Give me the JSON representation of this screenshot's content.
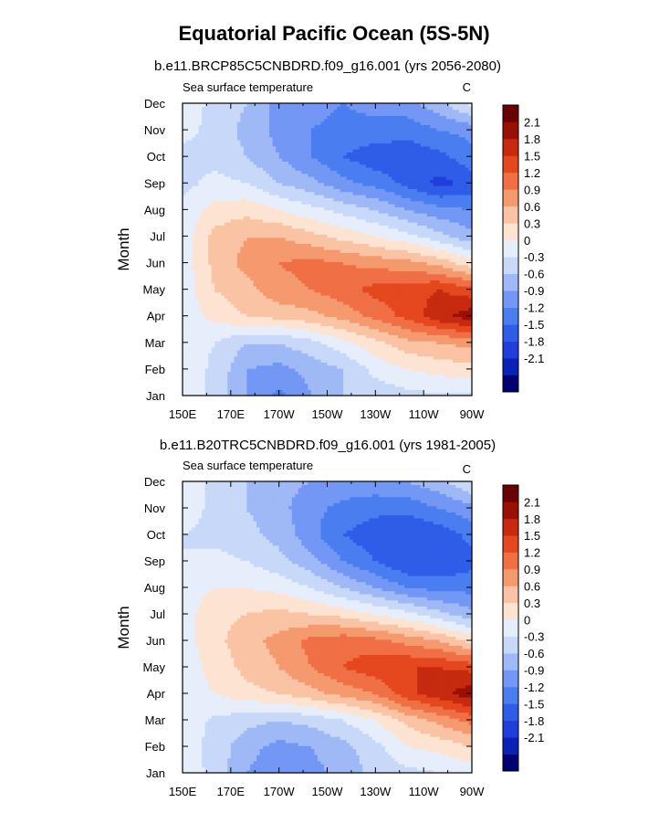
{
  "figure": {
    "title": "Equatorial Pacific Ocean (5S-5N)"
  },
  "chart_data": [
    {
      "type": "heatmap",
      "title": "b.e11.BRCP85C5CNBDRD.f09_g16.001 (yrs 2056-2080)",
      "left_label": "Sea surface temperature",
      "right_label": "C",
      "xlabel": "",
      "ylabel": "Month",
      "x_tick_labels": [
        "150E",
        "170E",
        "170W",
        "150W",
        "130W",
        "110W",
        "90W"
      ],
      "y_tick_labels": [
        "Jan",
        "Feb",
        "Mar",
        "Apr",
        "May",
        "Jun",
        "Jul",
        "Aug",
        "Sep",
        "Oct",
        "Nov",
        "Dec"
      ],
      "colorbar": {
        "labels": [
          "2.1",
          "1.8",
          "1.5",
          "1.2",
          "0.9",
          "0.6",
          "0.3",
          "0",
          "-0.3",
          "-0.6",
          "-0.9",
          "-1.2",
          "-1.5",
          "-1.8",
          "-2.1"
        ]
      },
      "values": [
        [
          0.2,
          -0.1,
          -0.6,
          -1.0,
          -0.6,
          -0.3,
          -0.2,
          -0.1,
          -0.05,
          -0.1
        ],
        [
          0.15,
          -0.05,
          -0.6,
          -0.7,
          -0.5,
          -0.3,
          0.1,
          0.3,
          0.4,
          0.5
        ],
        [
          0.1,
          0.0,
          -0.3,
          -0.3,
          -0.1,
          0.2,
          0.5,
          0.8,
          0.9,
          1.0
        ],
        [
          0.1,
          0.4,
          0.6,
          0.7,
          0.8,
          1.0,
          1.3,
          1.6,
          2.0,
          2.3
        ],
        [
          0.1,
          0.6,
          0.8,
          1.1,
          1.2,
          1.4,
          1.6,
          1.7,
          1.8,
          1.6
        ],
        [
          0.1,
          0.7,
          1.0,
          1.2,
          1.3,
          1.2,
          1.1,
          1.0,
          0.8,
          0.4
        ],
        [
          0.1,
          0.7,
          0.9,
          0.9,
          0.7,
          0.5,
          0.3,
          0.1,
          -0.2,
          -0.5
        ],
        [
          0.1,
          0.4,
          0.5,
          0.3,
          0.1,
          -0.1,
          -0.3,
          -0.6,
          -0.8,
          -0.9
        ],
        [
          -0.1,
          0.1,
          0.0,
          -0.3,
          -0.5,
          -0.8,
          -1.0,
          -1.3,
          -1.6,
          -1.4
        ],
        [
          -0.1,
          -0.1,
          -0.3,
          -0.6,
          -0.9,
          -1.2,
          -1.4,
          -1.4,
          -1.3,
          -1.0
        ],
        [
          0.1,
          -0.1,
          -0.4,
          -0.7,
          -0.9,
          -1.0,
          -1.0,
          -1.1,
          -0.9,
          -0.8
        ],
        [
          0.2,
          -0.1,
          -0.3,
          -0.7,
          -0.8,
          -0.9,
          -0.8,
          -0.7,
          -0.4,
          0.1
        ]
      ]
    },
    {
      "type": "heatmap",
      "title": "b.e11.B20TRC5CNBDRD.f09_g16.001 (yrs 1981-2005)",
      "left_label": "Sea surface temperature",
      "right_label": "C",
      "xlabel": "",
      "ylabel": "Month",
      "x_tick_labels": [
        "150E",
        "170E",
        "170W",
        "150W",
        "130W",
        "110W",
        "90W"
      ],
      "y_tick_labels": [
        "Jan",
        "Feb",
        "Mar",
        "Apr",
        "May",
        "Jun",
        "Jul",
        "Aug",
        "Sep",
        "Oct",
        "Nov",
        "Dec"
      ],
      "colorbar": {
        "labels": [
          "2.1",
          "1.8",
          "1.5",
          "1.2",
          "0.9",
          "0.6",
          "0.3",
          "0",
          "-0.3",
          "-0.6",
          "-0.9",
          "-1.2",
          "-1.5",
          "-1.8",
          "-2.1"
        ]
      },
      "values": [
        [
          0.2,
          -0.1,
          -0.6,
          -0.8,
          -0.7,
          -0.5,
          -0.2,
          -0.1,
          0.0,
          0.1
        ],
        [
          0.15,
          -0.1,
          -0.5,
          -0.7,
          -0.6,
          -0.4,
          -0.1,
          0.3,
          0.4,
          0.6
        ],
        [
          0.15,
          -0.05,
          -0.2,
          -0.3,
          -0.2,
          0.0,
          0.3,
          0.7,
          1.0,
          1.3
        ],
        [
          0.15,
          0.3,
          0.5,
          0.6,
          0.8,
          1.0,
          1.2,
          1.7,
          2.0,
          2.3
        ],
        [
          0.15,
          0.4,
          0.7,
          0.9,
          1.2,
          1.5,
          1.7,
          1.8,
          1.8,
          1.7
        ],
        [
          0.15,
          0.5,
          0.8,
          1.0,
          1.3,
          1.4,
          1.3,
          1.1,
          0.9,
          0.5
        ],
        [
          0.15,
          0.5,
          0.6,
          0.7,
          0.6,
          0.5,
          0.3,
          0.1,
          -0.2,
          -0.5
        ],
        [
          0.15,
          0.3,
          0.3,
          0.2,
          0.0,
          -0.3,
          -0.6,
          -0.9,
          -1.0,
          -1.0
        ],
        [
          0.0,
          0.1,
          0.0,
          -0.2,
          -0.5,
          -0.9,
          -1.2,
          -1.5,
          -1.5,
          -1.3
        ],
        [
          0.0,
          -0.1,
          -0.2,
          -0.4,
          -0.8,
          -1.2,
          -1.4,
          -1.5,
          -1.4,
          -1.1
        ],
        [
          0.2,
          -0.1,
          -0.3,
          -0.5,
          -0.8,
          -1.0,
          -1.1,
          -1.1,
          -0.9,
          -0.7
        ],
        [
          0.3,
          -0.1,
          -0.3,
          -0.5,
          -0.6,
          -0.7,
          -0.7,
          -0.6,
          -0.4,
          0.0
        ]
      ]
    }
  ],
  "palette": {
    "levels": [
      -2.1,
      -1.8,
      -1.5,
      -1.2,
      -0.9,
      -0.6,
      -0.3,
      0,
      0.3,
      0.6,
      0.9,
      1.2,
      1.5,
      1.8,
      2.1
    ],
    "colors": [
      "#00006e",
      "#0a21b5",
      "#1f3fdb",
      "#2f5de8",
      "#4a7ef0",
      "#7397f4",
      "#9fb8f6",
      "#c8d8f8",
      "#e6eefc",
      "#fde4d2",
      "#f9c3a4",
      "#f5996f",
      "#f06f45",
      "#e5471f",
      "#c62a0f",
      "#9a1005",
      "#6b0000"
    ]
  }
}
